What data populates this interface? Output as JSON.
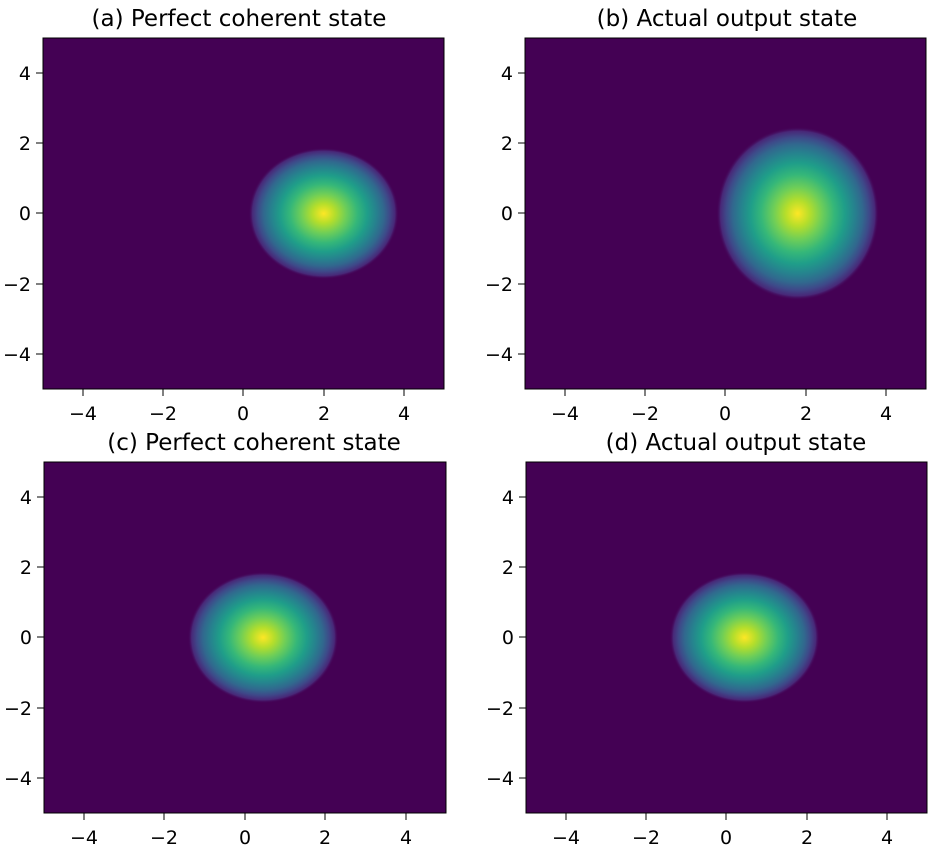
{
  "chart_data": [
    {
      "type": "heatmap",
      "title": "(a) Perfect coherent state",
      "xlim": [
        -5,
        5
      ],
      "ylim": [
        -5,
        5
      ],
      "xticks": [
        "−4",
        "−2",
        "0",
        "2",
        "4"
      ],
      "yticks": [
        "4",
        "2",
        "0",
        "−2",
        "−4"
      ],
      "peak": {
        "x": 2.0,
        "y": 0.0
      },
      "sigma": {
        "x": 0.72,
        "y": 0.72
      },
      "colormap": "viridis"
    },
    {
      "type": "heatmap",
      "title": "(b) Actual output state",
      "xlim": [
        -5,
        5
      ],
      "ylim": [
        -5,
        5
      ],
      "xticks": [
        "−4",
        "−2",
        "0",
        "2",
        "4"
      ],
      "yticks": [
        "4",
        "2",
        "0",
        "−2",
        "−4"
      ],
      "peak": {
        "x": 1.8,
        "y": 0.0
      },
      "sigma": {
        "x": 0.78,
        "y": 0.95
      },
      "colormap": "viridis"
    },
    {
      "type": "heatmap",
      "title": "(c) Perfect coherent state",
      "xlim": [
        -5,
        5
      ],
      "ylim": [
        -5,
        5
      ],
      "xticks": [
        "−4",
        "−2",
        "0",
        "2",
        "4"
      ],
      "yticks": [
        "4",
        "2",
        "0",
        "−2",
        "−4"
      ],
      "peak": {
        "x": 0.45,
        "y": 0.0
      },
      "sigma": {
        "x": 0.72,
        "y": 0.72
      },
      "colormap": "viridis"
    },
    {
      "type": "heatmap",
      "title": "(d) Actual output state",
      "xlim": [
        -5,
        5
      ],
      "ylim": [
        -5,
        5
      ],
      "xticks": [
        "−4",
        "−2",
        "0",
        "2",
        "4"
      ],
      "yticks": [
        "4",
        "2",
        "0",
        "−2",
        "−4"
      ],
      "peak": {
        "x": 0.45,
        "y": 0.0
      },
      "sigma": {
        "x": 0.72,
        "y": 0.72
      },
      "colormap": "viridis"
    }
  ],
  "colors": {
    "background_low": "#440154",
    "peak": "#fde725"
  }
}
